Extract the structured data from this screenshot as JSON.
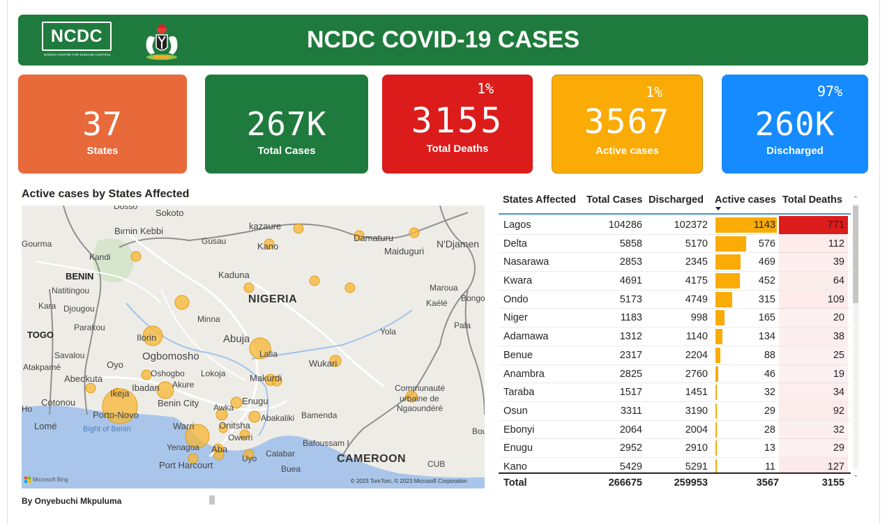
{
  "header": {
    "title": "NCDC COVID-19 CASES",
    "logo_text": "NCDC",
    "logo_subtitle": "NIGERIA CENTRE FOR DISEASE CONTROL"
  },
  "kpis": {
    "states": {
      "value": "37",
      "label": "States"
    },
    "total_cases": {
      "value": "267K",
      "label": "Total Cases"
    },
    "total_deaths": {
      "value": "3155",
      "label": "Total Deaths",
      "percent": "1%"
    },
    "active_cases": {
      "value": "3567",
      "label": "Active cases",
      "percent": "1%"
    },
    "discharged": {
      "value": "260K",
      "label": "Discharged",
      "percent": "97%"
    }
  },
  "map": {
    "title": "Active cases by States Affected",
    "attribution_brand": "Microsoft Bing",
    "copyright": "© 2023 TomTom, © 2023 Microsoft Corporation",
    "labels": {
      "sokoto": "Sokoto",
      "birnin_kebbi": "Birnin Kebbi",
      "kazaure": "kazaure",
      "damaturu": "Damaturu",
      "gourma": "Gourma",
      "gusau": "Gusau",
      "kano": "Kano",
      "maiduguri": "Maiduguri",
      "ndjamena": "N'Djamen",
      "kandi": "Kandi",
      "benin": "BENIN",
      "natitingou": "Natitingou",
      "kaduna": "Kaduna",
      "maroua": "Maroua",
      "kara": "Kara",
      "djougou": "Djougou",
      "nigeria": "NIGERIA",
      "kaele": "Kaélé",
      "bongo": "Bongo",
      "parakou": "Parakou",
      "minna": "Minna",
      "pala": "Pala",
      "togo": "TOGO",
      "ilorin": "Ilorin",
      "abuja": "Abuja",
      "yola": "Yola",
      "savalou": "Savalou",
      "ogbomosho": "Ogbomosho",
      "lafia": "Lafia",
      "atakpame": "Atakpamé",
      "oyo": "Oyo",
      "oshogbo": "Oshogbo",
      "lokoja": "Lokoja",
      "wukari": "Wukari",
      "abeokuta": "Abeokuta",
      "akure": "Akure",
      "makurdi": "Makurdi",
      "ibadan": "Ibadan",
      "communaute": "Communauté",
      "urbaine_de": "urbaine de",
      "ngaoundere": "Ngaoundéré",
      "cotonou": "Cotonou",
      "ikeja": "Ikeja",
      "benin_city": "Benin City",
      "awka": "Awka",
      "enugu": "Enugu",
      "porto_novo": "Porto-Novo",
      "abakaliki": "Abakaliki",
      "bamenda": "Bamenda",
      "lome": "Lomé",
      "bight": "Bight of Benin",
      "warri": "Warri",
      "onitsha": "Onitsha",
      "owerri": "Owerri",
      "bafoussam": "Bafoussam I",
      "yenagoa": "Yenagoa",
      "aba": "Aba",
      "uyo": "Uyo",
      "calabar": "Calabar",
      "cameroon": "CAMEROON",
      "port_harcourt": "Port Harcourt",
      "buea": "Buea",
      "cub": "CUB",
      "ho": "Ho",
      "bou": "Bou",
      "dosso": "Dosso"
    }
  },
  "author": "By Onyebuchi Mkpuluma",
  "table": {
    "headers": [
      "States Affected",
      "Total Cases",
      "Discharged",
      "Active cases",
      "Total Deaths"
    ],
    "rows": [
      {
        "state": "Lagos",
        "total": "104286",
        "discharged": "102372",
        "active": "1143",
        "deaths": "771"
      },
      {
        "state": "Delta",
        "total": "5858",
        "discharged": "5170",
        "active": "576",
        "deaths": "112"
      },
      {
        "state": "Nasarawa",
        "total": "2853",
        "discharged": "2345",
        "active": "469",
        "deaths": "39"
      },
      {
        "state": "Kwara",
        "total": "4691",
        "discharged": "4175",
        "active": "452",
        "deaths": "64"
      },
      {
        "state": "Ondo",
        "total": "5173",
        "discharged": "4749",
        "active": "315",
        "deaths": "109"
      },
      {
        "state": "Niger",
        "total": "1183",
        "discharged": "998",
        "active": "165",
        "deaths": "20"
      },
      {
        "state": "Adamawa",
        "total": "1312",
        "discharged": "1140",
        "active": "134",
        "deaths": "38"
      },
      {
        "state": "Benue",
        "total": "2317",
        "discharged": "2204",
        "active": "88",
        "deaths": "25"
      },
      {
        "state": "Anambra",
        "total": "2825",
        "discharged": "2760",
        "active": "46",
        "deaths": "19"
      },
      {
        "state": "Taraba",
        "total": "1517",
        "discharged": "1451",
        "active": "32",
        "deaths": "34"
      },
      {
        "state": "Osun",
        "total": "3311",
        "discharged": "3190",
        "active": "29",
        "deaths": "92"
      },
      {
        "state": "Ebonyi",
        "total": "2064",
        "discharged": "2004",
        "active": "28",
        "deaths": "32"
      },
      {
        "state": "Enugu",
        "total": "2952",
        "discharged": "2910",
        "active": "13",
        "deaths": "29"
      },
      {
        "state": "Kano",
        "total": "5429",
        "discharged": "5291",
        "active": "11",
        "deaths": "127"
      }
    ],
    "totals": {
      "label": "Total",
      "total": "266675",
      "discharged": "259953",
      "active": "3567",
      "deaths": "3155"
    }
  },
  "colors": {
    "header_green": "#1f7b3d",
    "states_orange": "#e8693a",
    "deaths_red": "#dc1c1b",
    "active_amber": "#fbab05",
    "discharged_blue": "#168aff",
    "bubble": "#f7b733"
  },
  "icons": {
    "coat_of_arms": "nigeria-coat-of-arms-icon",
    "sort": "sort-descending-icon",
    "scroll_up": "chevron-up-icon",
    "scroll_down": "chevron-down-icon"
  }
}
